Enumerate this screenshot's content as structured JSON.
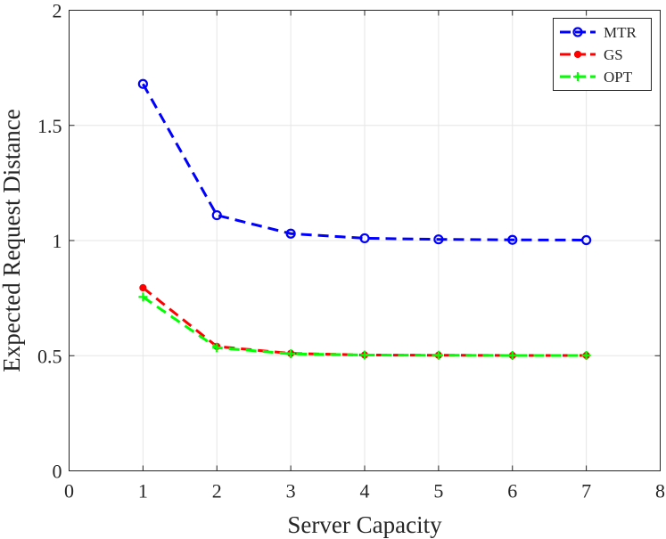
{
  "chart_data": {
    "type": "line",
    "title": "",
    "xlabel": "Server Capacity",
    "ylabel": "Expected Request Distance",
    "xlim": [
      0,
      8
    ],
    "ylim": [
      0,
      2
    ],
    "xticks": [
      0,
      1,
      2,
      3,
      4,
      5,
      6,
      7,
      8
    ],
    "yticks": [
      0,
      0.5,
      1,
      1.5,
      2
    ],
    "xtick_labels": [
      "0",
      "1",
      "2",
      "3",
      "4",
      "5",
      "6",
      "7",
      "8"
    ],
    "ytick_labels": [
      "0",
      "0.5",
      "1",
      "1.5",
      "2"
    ],
    "grid": true,
    "legend_position": "top-right",
    "x": [
      1,
      2,
      3,
      4,
      5,
      6,
      7
    ],
    "series": [
      {
        "name": "MTR",
        "color": "#0000ff",
        "marker": "circle-open",
        "values": [
          1.68,
          1.11,
          1.03,
          1.01,
          1.005,
          1.003,
          1.002
        ]
      },
      {
        "name": "GS",
        "color": "#ff0000",
        "marker": "dot",
        "values": [
          0.795,
          0.54,
          0.51,
          0.503,
          0.502,
          0.501,
          0.501
        ]
      },
      {
        "name": "OPT",
        "color": "#00ff00",
        "marker": "plus",
        "values": [
          0.755,
          0.535,
          0.508,
          0.503,
          0.502,
          0.501,
          0.501
        ]
      }
    ]
  }
}
